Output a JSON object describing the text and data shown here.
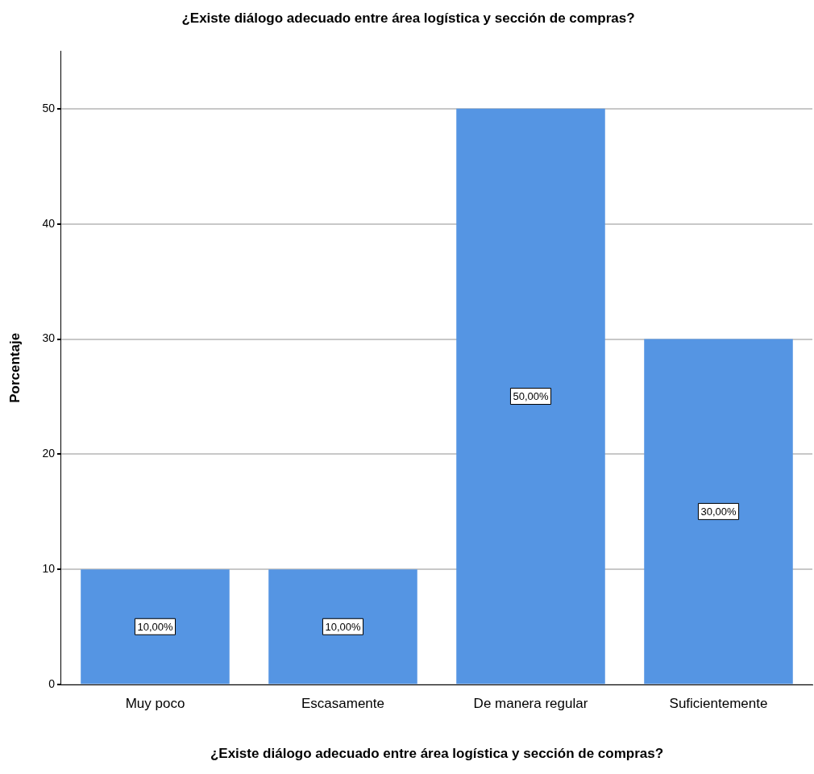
{
  "chart_data": {
    "type": "bar",
    "title": "¿Existe diálogo adecuado entre área logística y sección de compras?",
    "xlabel": "¿Existe diálogo adecuado entre área logística y sección de compras?",
    "ylabel": "Porcentaje",
    "categories": [
      "Muy poco",
      "Escasamente",
      "De manera regular",
      "Suficientemente"
    ],
    "values": [
      10,
      10,
      50,
      30
    ],
    "color": "#5595e3",
    "value_labels": [
      "10,00%",
      "10,00%",
      "50,00%",
      "30,00%"
    ],
    "ylim": [
      0,
      55
    ],
    "yticks": [
      0,
      10,
      20,
      30,
      40,
      50
    ],
    "grid": "y",
    "legend": false
  }
}
